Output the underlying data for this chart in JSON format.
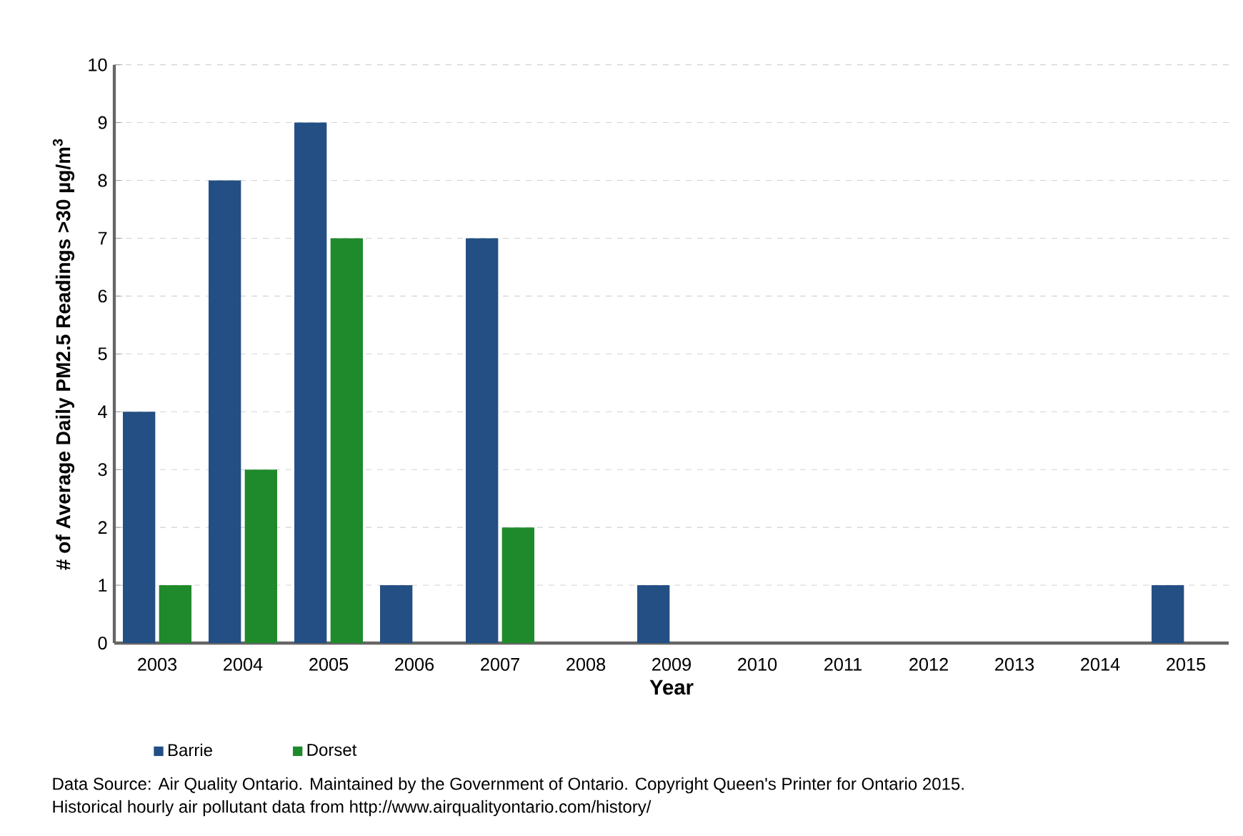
{
  "chart_data": {
    "type": "bar",
    "xlabel": "Year",
    "ylabel": "# of Average Daily PM2.5  Readings >30 µg/m$^{3}$",
    "categories": [
      "2003",
      "2004",
      "2005",
      "2006",
      "2007",
      "2008",
      "2009",
      "2010",
      "2011",
      "2012",
      "2013",
      "2014",
      "2015"
    ],
    "series": [
      {
        "name": "Barrie",
        "color": "#234f84",
        "values": [
          4,
          8,
          9,
          1,
          7,
          0,
          1,
          0,
          0,
          0,
          0,
          0,
          1
        ]
      },
      {
        "name": "Dorset",
        "color": "#1f8a2b",
        "values": [
          1,
          3,
          7,
          0,
          2,
          0,
          0,
          0,
          0,
          0,
          0,
          0,
          0
        ]
      }
    ],
    "ylim": [
      0,
      10
    ],
    "yticks": [
      0,
      1,
      2,
      3,
      4,
      5,
      6,
      7,
      8,
      9,
      10
    ],
    "grid": "y",
    "legend": "bottom left",
    "annotations": [
      "Data Source: Air Quality Ontario. Maintained by the Government of Ontario. Copyright Queen's Printer for Ontario 2015.",
      "Historical hourly air pollutant data from http://www.airqualityontario.com/history/"
    ]
  }
}
